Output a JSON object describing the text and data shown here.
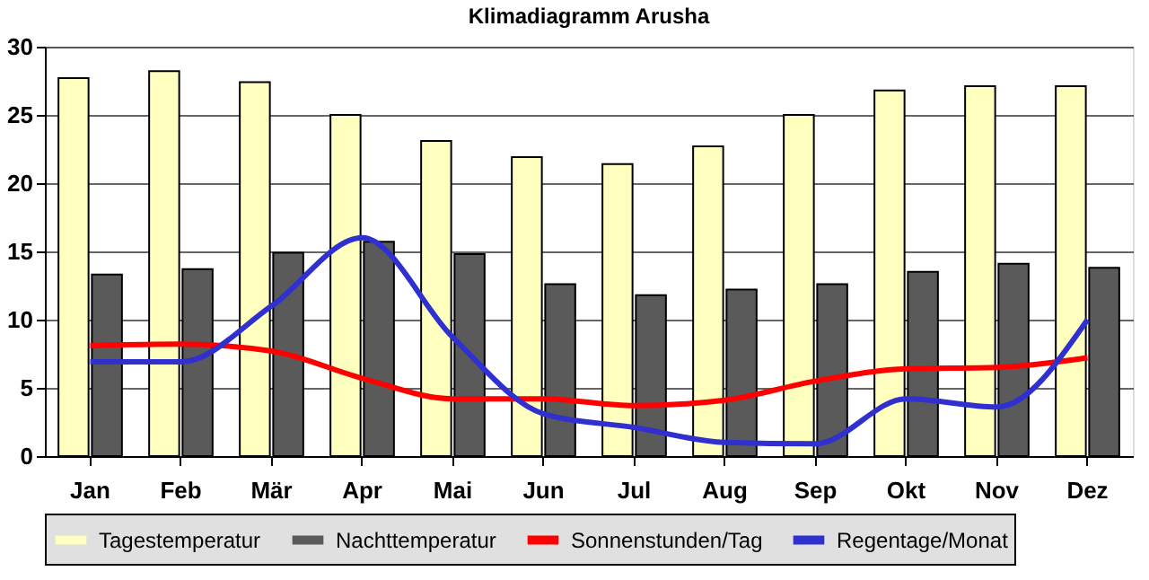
{
  "chart_data": {
    "type": "bar",
    "title": "Klimadiagramm Arusha",
    "categories": [
      "Jan",
      "Feb",
      "Mär",
      "Apr",
      "Mai",
      "Jun",
      "Jul",
      "Aug",
      "Sep",
      "Okt",
      "Nov",
      "Dez"
    ],
    "series": [
      {
        "name": "Tagestemperatur",
        "color": "#ffffc0",
        "values": [
          27.7,
          28.2,
          27.4,
          25.0,
          23.1,
          21.9,
          21.4,
          22.7,
          25.0,
          26.8,
          27.1,
          27.1
        ]
      },
      {
        "name": "Nachttemperatur",
        "color": "#5a5a5a",
        "values": [
          13.3,
          13.7,
          14.9,
          15.7,
          14.8,
          12.6,
          11.8,
          12.2,
          12.6,
          13.5,
          14.1,
          13.8
        ]
      },
      {
        "name": "Sonnenstunden/Tag",
        "type": "line",
        "color": "#ff0000",
        "values": [
          8.1,
          8.2,
          7.7,
          5.7,
          4.2,
          4.2,
          3.7,
          4.1,
          5.5,
          6.4,
          6.5,
          7.2
        ]
      },
      {
        "name": "Regentage/Monat",
        "type": "line",
        "color": "#3030d0",
        "values": [
          6.9,
          6.9,
          11.0,
          16.0,
          8.7,
          3.1,
          2.1,
          1.0,
          0.9,
          4.2,
          3.6,
          10.0
        ]
      }
    ],
    "ylim": [
      0,
      30
    ],
    "yticks": [
      0,
      5,
      10,
      15,
      20,
      25,
      30
    ],
    "grid": "y",
    "legend": "bottom",
    "marker": "none"
  }
}
